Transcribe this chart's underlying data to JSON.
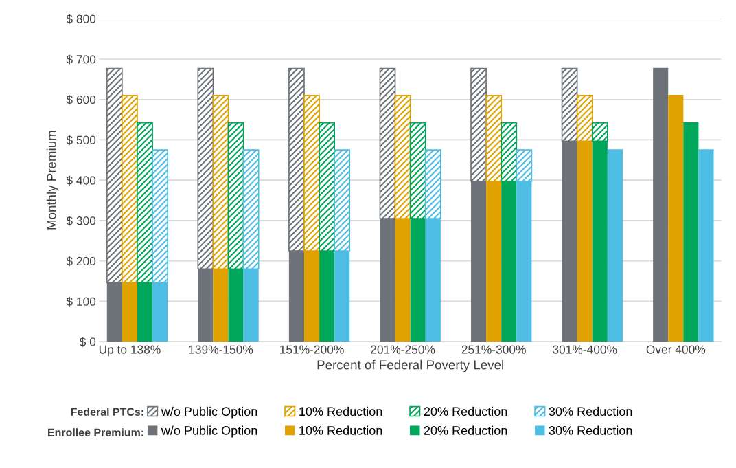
{
  "chart_data": {
    "type": "bar",
    "stacked": true,
    "xlabel": "Percent of Federal Poverty Level",
    "ylabel": "Monthly Premium",
    "categories": [
      null,
      "Up to 138%",
      null,
      null,
      null,
      null,
      null,
      "139%-150%",
      null,
      null,
      null,
      null,
      null,
      "151%-200%",
      null,
      null,
      null,
      null,
      null,
      "201%-250%",
      null,
      null,
      null,
      null,
      null,
      "251%-300%",
      null,
      null,
      null,
      null,
      null,
      "301%-400%",
      null,
      null,
      null,
      null,
      null,
      "Over 400%",
      null,
      null
    ],
    "ylim": [
      0,
      800
    ],
    "yticks": [
      {
        "value": 0,
        "label": "$ 0"
      },
      {
        "value": 100,
        "label": "$ 100"
      },
      {
        "value": 200,
        "label": "$ 200"
      },
      {
        "value": 300,
        "label": "$ 300"
      },
      {
        "value": 400,
        "label": "$ 400"
      },
      {
        "value": 500,
        "label": "$ 500"
      },
      {
        "value": 600,
        "label": "$ 600"
      },
      {
        "value": 700,
        "label": "$ 700"
      },
      {
        "value": 800,
        "label": "$ 800"
      }
    ],
    "grid": "y",
    "legend": "bottom",
    "annotations": [
      "Federal PTCs:",
      "Enrollee Premium:"
    ],
    "series": [
      {
        "name": "w/o Public Option",
        "color": "#6d7378",
        "values": [
          146,
          null,
          null,
          null,
          null,
          null,
          180,
          null,
          null,
          null,
          null,
          null,
          225,
          null,
          null,
          null,
          null,
          null,
          305,
          null,
          null,
          null,
          null,
          null,
          397,
          null,
          null,
          null,
          null,
          null,
          497,
          null,
          null,
          null,
          null,
          null,
          677,
          null,
          null,
          null
        ]
      },
      {
        "name": "10% Reduction",
        "color": "#e0a200",
        "values": [
          null,
          146,
          null,
          null,
          null,
          null,
          null,
          180,
          null,
          null,
          null,
          null,
          null,
          225,
          null,
          null,
          null,
          null,
          null,
          305,
          null,
          null,
          null,
          null,
          null,
          397,
          null,
          null,
          null,
          null,
          null,
          497,
          null,
          null,
          null,
          null,
          null,
          610,
          null,
          null
        ]
      },
      {
        "name": "20% Reduction",
        "color": "#00a65a",
        "values": [
          null,
          null,
          146,
          null,
          null,
          null,
          null,
          null,
          180,
          null,
          null,
          null,
          null,
          null,
          225,
          null,
          null,
          null,
          null,
          null,
          305,
          null,
          null,
          null,
          null,
          null,
          397,
          null,
          null,
          null,
          null,
          null,
          497,
          null,
          null,
          null,
          null,
          null,
          542,
          null
        ]
      },
      {
        "name": "30% Reduction",
        "color": "#4dbde3",
        "values": [
          null,
          null,
          null,
          146,
          null,
          null,
          null,
          null,
          null,
          180,
          null,
          null,
          null,
          null,
          null,
          225,
          null,
          null,
          null,
          null,
          null,
          305,
          null,
          null,
          null,
          null,
          null,
          397,
          null,
          null,
          null,
          null,
          null,
          475,
          null,
          null,
          null,
          null,
          null,
          475
        ]
      },
      {
        "name": "w/o Public Option",
        "color": "#6d7378",
        "values": [
          531,
          null,
          null,
          null,
          null,
          null,
          497,
          null,
          null,
          null,
          null,
          null,
          452,
          null,
          null,
          null,
          null,
          null,
          372,
          null,
          null,
          null,
          null,
          null,
          280,
          null,
          null,
          null,
          null,
          null,
          180,
          null,
          null,
          null,
          null,
          null,
          0,
          null,
          null,
          null
        ]
      },
      {
        "name": "10% Reduction",
        "color": "#e0a200",
        "values": [
          null,
          464,
          null,
          null,
          null,
          null,
          null,
          430,
          null,
          null,
          null,
          null,
          null,
          385,
          null,
          null,
          null,
          null,
          null,
          305,
          null,
          null,
          null,
          null,
          null,
          213,
          null,
          null,
          null,
          null,
          null,
          113,
          null,
          null,
          null,
          null,
          null,
          0,
          null,
          null
        ]
      },
      {
        "name": "20% Reduction",
        "color": "#00a65a",
        "values": [
          null,
          null,
          396,
          null,
          null,
          null,
          null,
          null,
          362,
          null,
          null,
          null,
          null,
          null,
          317,
          null,
          null,
          null,
          null,
          null,
          237,
          null,
          null,
          null,
          null,
          null,
          145,
          null,
          null,
          null,
          null,
          null,
          45,
          null,
          null,
          null,
          null,
          null,
          0,
          null
        ]
      },
      {
        "name": "30% Reduction",
        "color": "#4dbde3",
        "values": [
          null,
          null,
          null,
          329,
          null,
          null,
          null,
          null,
          null,
          295,
          null,
          null,
          null,
          null,
          null,
          250,
          null,
          null,
          null,
          null,
          null,
          170,
          null,
          null,
          null,
          null,
          null,
          78,
          null,
          null,
          null,
          null,
          null,
          0,
          null,
          null,
          null,
          null,
          null,
          0
        ]
      }
    ]
  }
}
